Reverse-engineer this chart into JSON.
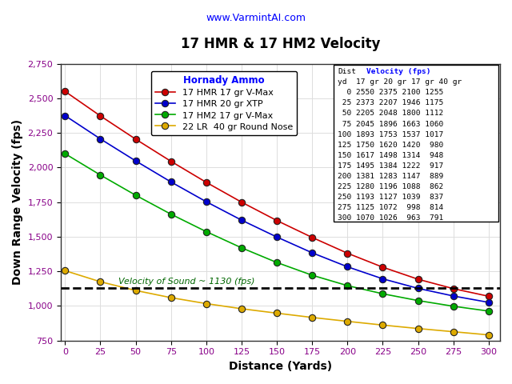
{
  "title": "17 HMR & 17 HM2 Velocity",
  "subtitle": "www.VarmintAI.com",
  "xlabel": "Distance (Yards)",
  "ylabel": "Down Range Velocity (fps)",
  "distances": [
    0,
    25,
    50,
    75,
    100,
    125,
    150,
    175,
    200,
    225,
    250,
    275,
    300
  ],
  "series": [
    {
      "label": "17 HMR 17 gr V-Max",
      "color": "#cc0000",
      "values": [
        2550,
        2373,
        2205,
        2045,
        1893,
        1750,
        1617,
        1495,
        1381,
        1280,
        1193,
        1125,
        1070
      ]
    },
    {
      "label": "17 HMR 20 gr XTP",
      "color": "#0000cc",
      "values": [
        2375,
        2207,
        2048,
        1896,
        1753,
        1620,
        1498,
        1384,
        1283,
        1196,
        1127,
        1072,
        1026
      ]
    },
    {
      "label": "17 HM2 17 gr V-Max",
      "color": "#00aa00",
      "values": [
        2100,
        1946,
        1800,
        1663,
        1537,
        1420,
        1314,
        1222,
        1147,
        1088,
        1039,
        998,
        963
      ]
    },
    {
      "label": "22 LR  40 gr Round Nose",
      "color": "#ddaa00",
      "values": [
        1255,
        1175,
        1112,
        1060,
        1017,
        980,
        948,
        917,
        889,
        862,
        837,
        814,
        791
      ]
    }
  ],
  "sound_velocity": 1130,
  "sound_label": "Velocity of Sound ~ 1130 (fps)",
  "ylim": [
    750,
    2750
  ],
  "yticks": [
    750,
    1000,
    1250,
    1500,
    1750,
    2000,
    2250,
    2500,
    2750
  ],
  "xticks": [
    0,
    25,
    50,
    75,
    100,
    125,
    150,
    175,
    200,
    225,
    250,
    275,
    300
  ],
  "background_color": "#ffffff",
  "plot_bg_color": "#ffffff",
  "grid_color": "#dddddd",
  "legend_title": "Hornady Ammo",
  "tick_color": "#880088",
  "title_fontsize": 12,
  "subtitle_fontsize": 9,
  "axis_label_fontsize": 10,
  "tick_fontsize": 8,
  "legend_fontsize": 8,
  "table_data": [
    [
      0,
      2550,
      2375,
      2100,
      1255
    ],
    [
      25,
      2373,
      2207,
      1946,
      1175
    ],
    [
      50,
      2205,
      2048,
      1800,
      1112
    ],
    [
      75,
      2045,
      1896,
      1663,
      1060
    ],
    [
      100,
      1893,
      1753,
      1537,
      1017
    ],
    [
      125,
      1750,
      1620,
      1420,
      980
    ],
    [
      150,
      1617,
      1498,
      1314,
      948
    ],
    [
      175,
      1495,
      1384,
      1222,
      917
    ],
    [
      200,
      1381,
      1283,
      1147,
      889
    ],
    [
      225,
      1280,
      1196,
      1088,
      862
    ],
    [
      250,
      1193,
      1127,
      1039,
      837
    ],
    [
      275,
      1125,
      1072,
      998,
      814
    ],
    [
      300,
      1070,
      1026,
      963,
      791
    ]
  ]
}
